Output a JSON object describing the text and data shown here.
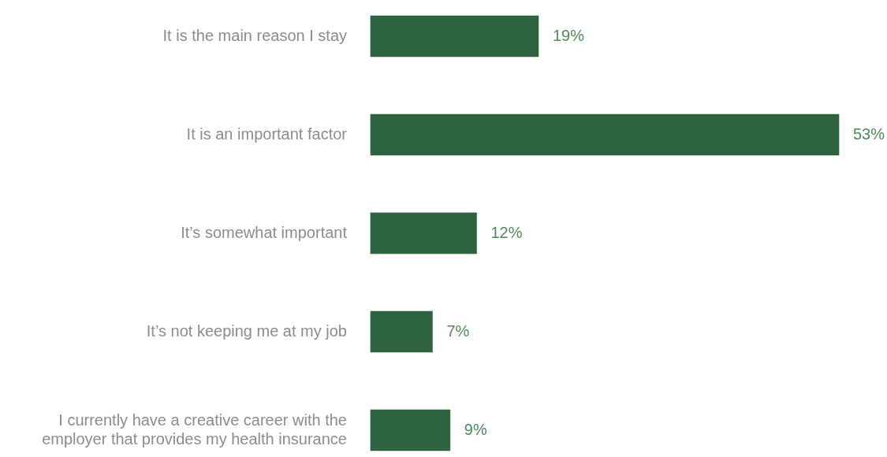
{
  "chart_data": {
    "type": "bar",
    "orientation": "horizontal",
    "categories": [
      "It is the main reason I stay",
      "It is an important factor",
      "It’s somewhat important",
      "It’s not keeping me at my job",
      "I currently have a creative career with the employer that provides my health insurance"
    ],
    "values": [
      19,
      53,
      12,
      7,
      9
    ],
    "color": "#2e6340",
    "value_labels": [
      "19%",
      "53%",
      "12%",
      "7%",
      "9%"
    ]
  }
}
